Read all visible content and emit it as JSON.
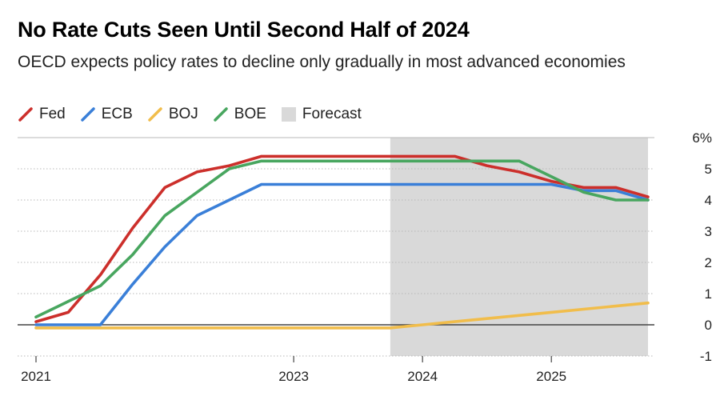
{
  "title": "No Rate Cuts Seen Until Second Half of 2024",
  "subtitle": "OECD expects policy rates to decline only gradually in most advanced economies",
  "legend": [
    {
      "name": "Fed",
      "color": "#cc2f2b",
      "kind": "line"
    },
    {
      "name": "ECB",
      "color": "#3a7fd8",
      "kind": "line"
    },
    {
      "name": "BOJ",
      "color": "#f1bd4b",
      "kind": "line"
    },
    {
      "name": "BOE",
      "color": "#48a65f",
      "kind": "line"
    },
    {
      "name": "Forecast",
      "color": "#d9d9d9",
      "kind": "box"
    }
  ],
  "chart_data": {
    "type": "line",
    "y_axis_position": "right",
    "ylim": [
      -1,
      6
    ],
    "y_ticks": [
      {
        "value": 6,
        "label": "6%"
      },
      {
        "value": 5,
        "label": "5"
      },
      {
        "value": 4,
        "label": "4"
      },
      {
        "value": 3,
        "label": "3"
      },
      {
        "value": 2,
        "label": "2"
      },
      {
        "value": 1,
        "label": "1"
      },
      {
        "value": 0,
        "label": "0"
      },
      {
        "value": -1,
        "label": "-1"
      }
    ],
    "xlim": [
      2021.0,
      2025.75
    ],
    "x_ticks": [
      {
        "value": 2021.0,
        "label": "2021"
      },
      {
        "value": 2023.0,
        "label": "2023"
      },
      {
        "value": 2024.0,
        "label": "2024"
      },
      {
        "value": 2025.0,
        "label": "2025"
      }
    ],
    "forecast_start": 2023.75,
    "series": [
      {
        "name": "Fed",
        "color": "#cc2f2b",
        "x": [
          2021.0,
          2021.25,
          2021.5,
          2021.75,
          2022.0,
          2022.25,
          2022.5,
          2022.75,
          2023.0,
          2023.25,
          2023.5,
          2023.75,
          2024.0,
          2024.25,
          2024.5,
          2024.75,
          2025.0,
          2025.25,
          2025.5,
          2025.75
        ],
        "values": [
          0.1,
          0.4,
          1.6,
          3.1,
          4.4,
          4.9,
          5.1,
          5.4,
          5.4,
          5.4,
          5.4,
          5.4,
          5.4,
          5.4,
          5.1,
          4.9,
          4.6,
          4.4,
          4.4,
          4.1
        ]
      },
      {
        "name": "ECB",
        "color": "#3a7fd8",
        "x": [
          2021.0,
          2021.25,
          2021.5,
          2021.75,
          2022.0,
          2022.25,
          2022.5,
          2022.75,
          2023.0,
          2023.25,
          2023.5,
          2023.75,
          2024.0,
          2024.25,
          2024.5,
          2024.75,
          2025.0,
          2025.25,
          2025.5,
          2025.75
        ],
        "values": [
          0.0,
          0.0,
          0.0,
          1.3,
          2.5,
          3.5,
          4.0,
          4.5,
          4.5,
          4.5,
          4.5,
          4.5,
          4.5,
          4.5,
          4.5,
          4.5,
          4.5,
          4.3,
          4.3,
          4.0
        ]
      },
      {
        "name": "BOJ",
        "color": "#f1bd4b",
        "x": [
          2021.0,
          2021.25,
          2021.5,
          2021.75,
          2022.0,
          2022.25,
          2022.5,
          2022.75,
          2023.0,
          2023.25,
          2023.5,
          2023.75,
          2024.0,
          2024.25,
          2024.5,
          2024.75,
          2025.0,
          2025.25,
          2025.5,
          2025.75
        ],
        "values": [
          -0.1,
          -0.1,
          -0.1,
          -0.1,
          -0.1,
          -0.1,
          -0.1,
          -0.1,
          -0.1,
          -0.1,
          -0.1,
          -0.1,
          0.0,
          0.1,
          0.2,
          0.3,
          0.4,
          0.5,
          0.6,
          0.7
        ]
      },
      {
        "name": "BOE",
        "color": "#48a65f",
        "x": [
          2021.0,
          2021.25,
          2021.5,
          2021.75,
          2022.0,
          2022.25,
          2022.5,
          2022.75,
          2023.0,
          2023.25,
          2023.5,
          2023.75,
          2024.0,
          2024.25,
          2024.5,
          2024.75,
          2025.0,
          2025.25,
          2025.5,
          2025.75
        ],
        "values": [
          0.25,
          0.75,
          1.25,
          2.25,
          3.5,
          4.25,
          5.0,
          5.25,
          5.25,
          5.25,
          5.25,
          5.25,
          5.25,
          5.25,
          5.25,
          5.25,
          4.75,
          4.25,
          4.0,
          4.0
        ]
      }
    ],
    "grid": "horizontal"
  }
}
